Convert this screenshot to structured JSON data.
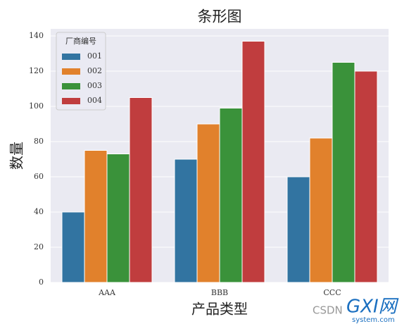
{
  "chart_data": {
    "type": "grouped_bar",
    "title": "条形图",
    "x_label": "产品类型",
    "y_label": "数量",
    "categories": [
      "AAA",
      "BBB",
      "CCC"
    ],
    "legend_title": "厂商编号",
    "legend": "upper left",
    "grid": true,
    "series": [
      {
        "name": "001",
        "color": "#3274a1",
        "values": [
          40,
          70,
          60
        ]
      },
      {
        "name": "002",
        "color": "#e1812c",
        "values": [
          75,
          90,
          82
        ]
      },
      {
        "name": "003",
        "color": "#3a923a",
        "values": [
          73,
          99,
          125
        ]
      },
      {
        "name": "004",
        "color": "#c03d3e",
        "values": [
          105,
          137,
          120
        ]
      }
    ],
    "ylim": [
      0,
      144
    ],
    "yticks": [
      0,
      20,
      40,
      60,
      80,
      100,
      120,
      140
    ]
  },
  "watermark": {
    "left": "CSDN",
    "brand": "GXI网",
    "site": "system.com"
  }
}
